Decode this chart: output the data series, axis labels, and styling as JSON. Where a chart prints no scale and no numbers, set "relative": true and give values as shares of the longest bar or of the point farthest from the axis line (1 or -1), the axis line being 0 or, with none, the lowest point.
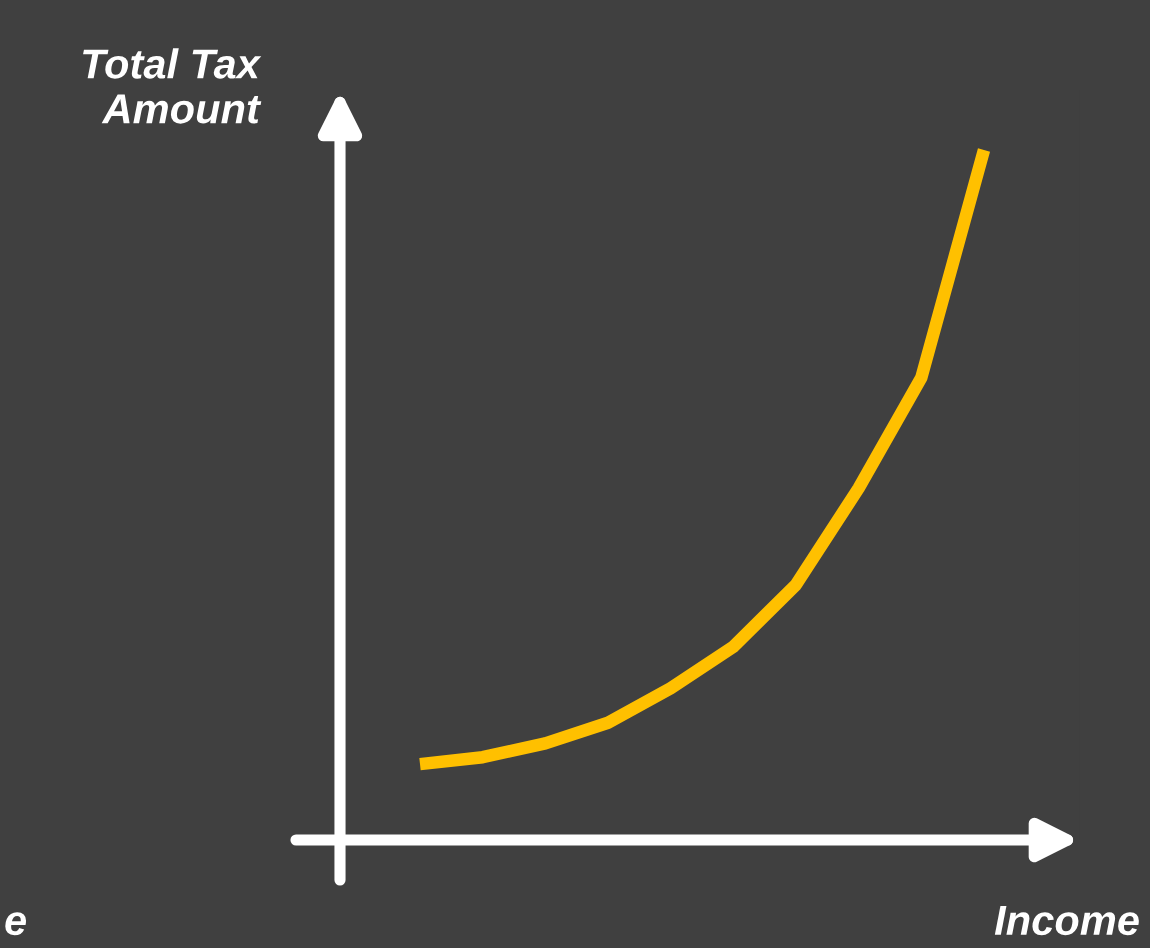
{
  "chart_data": {
    "type": "line",
    "relative": true,
    "ylabel": "Total Tax\nAmount",
    "xlabel": "Income",
    "annotations": [
      "e"
    ],
    "categories": [
      null,
      null,
      null,
      null,
      null,
      null,
      null,
      null,
      null,
      null
    ],
    "series": [
      {
        "color": "#ffc000",
        "values": [
          0.11,
          0.12,
          0.14,
          0.17,
          0.22,
          0.28,
          0.37,
          0.51,
          0.67,
          1.0
        ]
      }
    ],
    "grid": false,
    "legend": false,
    "marker": "none",
    "line_style": "solid"
  }
}
